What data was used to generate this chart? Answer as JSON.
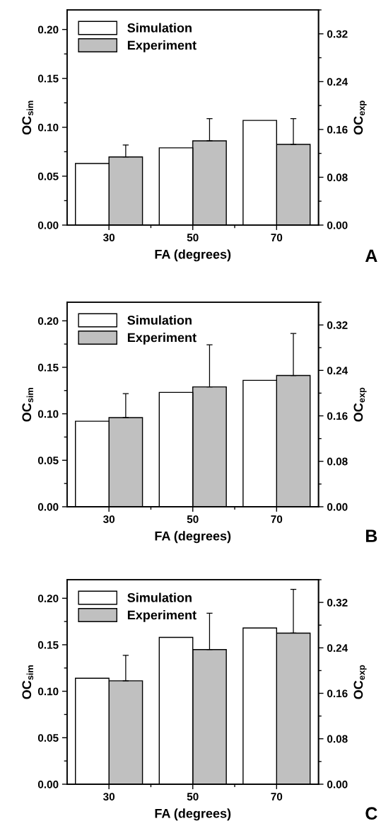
{
  "chart_data": [
    {
      "type": "bar",
      "categories": [
        "30",
        "50",
        "70"
      ],
      "xlabel": "FA (degrees)",
      "ylabel": "OC$_{sim}$",
      "y2label": "OC$_{exp}$",
      "legend": "upper left",
      "annotations": [
        "A"
      ],
      "ylim": [
        0,
        0.22
      ],
      "yticks": [
        {
          "value": 0,
          "label": "0.00"
        },
        {
          "value": 0.05,
          "label": "0.05"
        },
        {
          "value": 0.1,
          "label": "0.10"
        },
        {
          "value": 0.15,
          "label": "0.15"
        },
        {
          "value": 0.2,
          "label": "0.20"
        }
      ],
      "y2lim": [
        0,
        0.36
      ],
      "y2ticks": [
        {
          "value": 0,
          "label": "0.00"
        },
        {
          "value": 0.08,
          "label": "0.08"
        },
        {
          "value": 0.16,
          "label": "0.16"
        },
        {
          "value": 0.24,
          "label": "0.24"
        },
        {
          "value": 0.32,
          "label": "0.32"
        }
      ],
      "series": [
        {
          "name": "Simulation",
          "color": "#ffffff",
          "values": [
            0.063,
            0.079,
            0.107
          ]
        },
        {
          "name": "Experiment",
          "color": "#c0c0c0",
          "axis": "y2",
          "values": [
            0.114,
            0.141,
            0.135
          ],
          "errors": [
            [
              0.114,
              0.134
            ],
            [
              0.141,
              0.178
            ],
            [
              0.135,
              0.178
            ]
          ]
        }
      ]
    },
    {
      "type": "bar",
      "categories": [
        "30",
        "50",
        "70"
      ],
      "xlabel": "FA (degrees)",
      "ylabel": "OC$_{sim}$",
      "y2label": "OC$_{exp}$",
      "legend": "upper left",
      "annotations": [
        "B"
      ],
      "ylim": [
        0,
        0.22
      ],
      "yticks": [
        {
          "value": 0,
          "label": "0.00"
        },
        {
          "value": 0.05,
          "label": "0.05"
        },
        {
          "value": 0.1,
          "label": "0.10"
        },
        {
          "value": 0.15,
          "label": "0.15"
        },
        {
          "value": 0.2,
          "label": "0.20"
        }
      ],
      "y2lim": [
        0,
        0.36
      ],
      "y2ticks": [
        {
          "value": 0,
          "label": "0.00"
        },
        {
          "value": 0.08,
          "label": "0.08"
        },
        {
          "value": 0.16,
          "label": "0.16"
        },
        {
          "value": 0.24,
          "label": "0.24"
        },
        {
          "value": 0.32,
          "label": "0.32"
        }
      ],
      "series": [
        {
          "name": "Simulation",
          "color": "#ffffff",
          "values": [
            0.092,
            0.123,
            0.136
          ]
        },
        {
          "name": "Experiment",
          "color": "#c0c0c0",
          "axis": "y2",
          "values": [
            0.157,
            0.211,
            0.231
          ],
          "errors": [
            [
              0.157,
              0.199
            ],
            [
              0.211,
              0.285
            ],
            [
              0.231,
              0.305
            ]
          ]
        }
      ]
    },
    {
      "type": "bar",
      "categories": [
        "30",
        "50",
        "70"
      ],
      "xlabel": "FA (degrees)",
      "ylabel": "OC$_{sim}$",
      "y2label": "OC$_{exp}$",
      "legend": "upper left",
      "annotations": [
        "C"
      ],
      "ylim": [
        0,
        0.22
      ],
      "yticks": [
        {
          "value": 0,
          "label": "0.00"
        },
        {
          "value": 0.05,
          "label": "0.05"
        },
        {
          "value": 0.1,
          "label": "0.10"
        },
        {
          "value": 0.15,
          "label": "0.15"
        },
        {
          "value": 0.2,
          "label": "0.20"
        }
      ],
      "y2lim": [
        0,
        0.36
      ],
      "y2ticks": [
        {
          "value": 0,
          "label": "0.00"
        },
        {
          "value": 0.08,
          "label": "0.08"
        },
        {
          "value": 0.16,
          "label": "0.16"
        },
        {
          "value": 0.24,
          "label": "0.24"
        },
        {
          "value": 0.32,
          "label": "0.32"
        }
      ],
      "series": [
        {
          "name": "Simulation",
          "color": "#ffffff",
          "values": [
            0.114,
            0.158,
            0.168
          ]
        },
        {
          "name": "Experiment",
          "color": "#c0c0c0",
          "axis": "y2",
          "values": [
            0.182,
            0.237,
            0.266
          ],
          "errors": [
            [
              0.182,
              0.227
            ],
            [
              0.237,
              0.301
            ],
            [
              0.266,
              0.343
            ]
          ]
        }
      ]
    }
  ]
}
